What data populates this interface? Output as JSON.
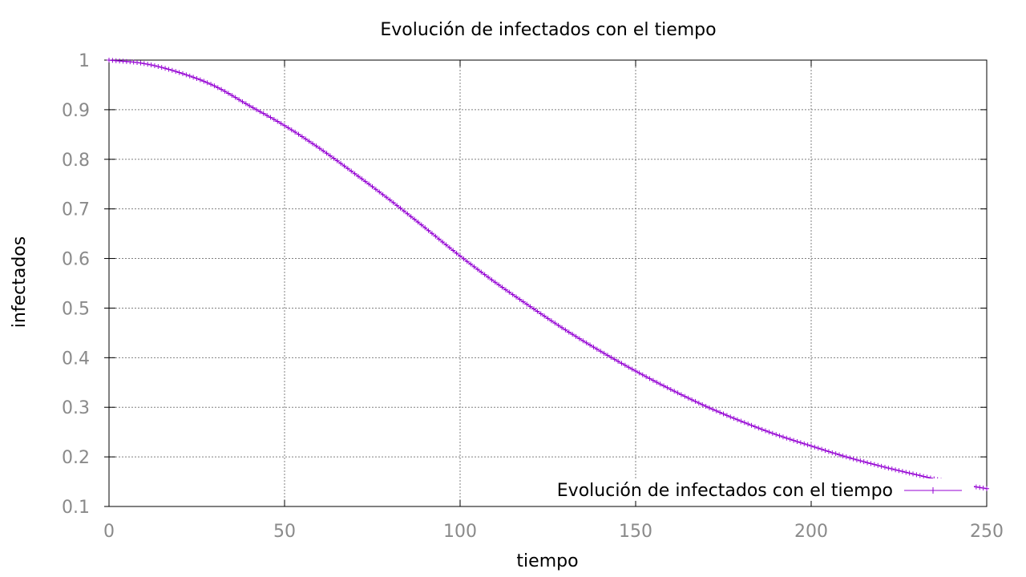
{
  "chart_data": {
    "type": "line",
    "title": "Evolución de infectados con el tiempo",
    "xlabel": "tiempo",
    "ylabel": "infectados",
    "xlim": [
      0,
      250
    ],
    "ylim": [
      0.1,
      1
    ],
    "xticks": [
      "0",
      "50",
      "100",
      "150",
      "200",
      "250"
    ],
    "yticks": [
      "0.1",
      "0.2",
      "0.3",
      "0.4",
      "0.5",
      "0.6",
      "0.7",
      "0.8",
      "0.9",
      "1"
    ],
    "grid": true,
    "legend_position": "bottom-right",
    "series": [
      {
        "name": "Evolución de infectados con el tiempo",
        "color": "#9400d3",
        "marker": "plus",
        "x": [
          0,
          10,
          20,
          30,
          40,
          50,
          60,
          70,
          80,
          90,
          100,
          110,
          120,
          130,
          140,
          150,
          160,
          170,
          180,
          190,
          200,
          210,
          220,
          230,
          240,
          250
        ],
        "y": [
          1.0,
          0.993,
          0.975,
          0.948,
          0.908,
          0.868,
          0.822,
          0.771,
          0.718,
          0.662,
          0.605,
          0.552,
          0.503,
          0.456,
          0.413,
          0.373,
          0.336,
          0.302,
          0.272,
          0.245,
          0.222,
          0.2,
          0.181,
          0.164,
          0.148,
          0.136
        ]
      }
    ]
  }
}
